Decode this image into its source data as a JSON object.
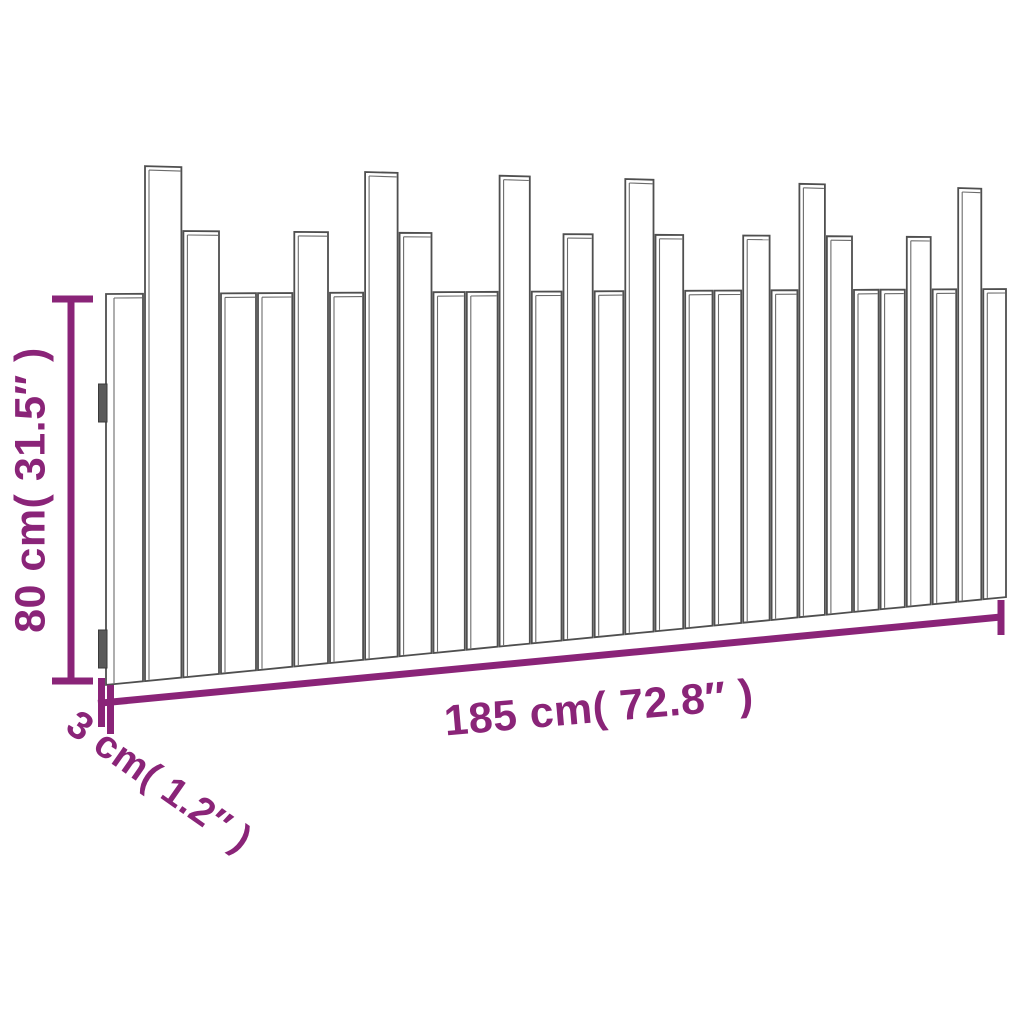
{
  "diagram": {
    "labels": {
      "height": "80 cm( 31.5″ )",
      "width": "185 cm( 72.8″ )",
      "depth": "3 cm( 1.2″ )"
    },
    "colors": {
      "dimension": "#8A2478",
      "slat_outline": "#4f4f4f",
      "slat_inner_edge": "#6b6b6b",
      "slat_fill": "#ffffff",
      "bracket_fill": "#5a5a5a",
      "bracket_outline": "#3a3a3a",
      "background": "#ffffff"
    },
    "slats": {
      "count": 29,
      "pattern": [
        "short",
        "tall",
        "medium",
        "short",
        "short",
        "medium",
        "short",
        "tall",
        "medium",
        "short",
        "short",
        "tall",
        "short",
        "medium",
        "short",
        "tall",
        "medium",
        "short",
        "short",
        "medium",
        "short",
        "tall",
        "medium",
        "short",
        "short",
        "medium",
        "short",
        "tall",
        "short"
      ]
    },
    "brackets": {
      "count": 2
    }
  }
}
